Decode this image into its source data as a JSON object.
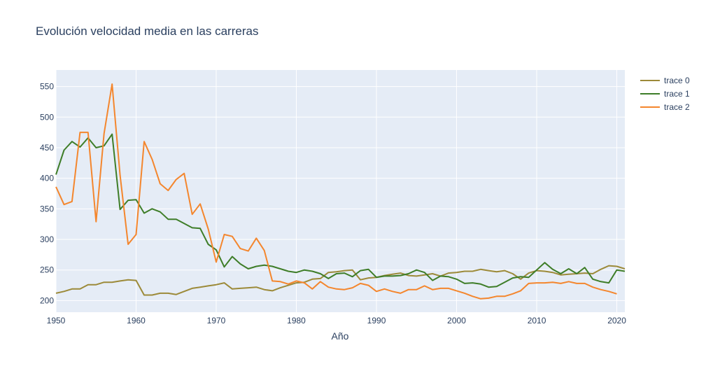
{
  "chart_data": {
    "type": "line",
    "title": "Evolución velocidad media en las carreras",
    "xlabel": "Año",
    "ylabel": "",
    "xlim": [
      1950,
      2021
    ],
    "ylim": [
      181,
      577
    ],
    "x_ticks": [
      1950,
      1960,
      1970,
      1980,
      1990,
      2000,
      2010,
      2020
    ],
    "y_ticks": [
      200,
      250,
      300,
      350,
      400,
      450,
      500,
      550
    ],
    "grid": true,
    "legend_position": "top-right",
    "plot_background": "#e5ecf6",
    "series": [
      {
        "name": "trace 0",
        "color": "#9c8a39",
        "x": [
          1950,
          1951,
          1952,
          1953,
          1954,
          1955,
          1956,
          1957,
          1958,
          1959,
          1960,
          1961,
          1962,
          1963,
          1964,
          1965,
          1966,
          1967,
          1968,
          1969,
          1970,
          1971,
          1972,
          1973,
          1974,
          1975,
          1976,
          1977,
          1978,
          1979,
          1980,
          1981,
          1982,
          1983,
          1984,
          1985,
          1986,
          1987,
          1988,
          1989,
          1990,
          1991,
          1992,
          1993,
          1994,
          1995,
          1996,
          1997,
          1998,
          1999,
          2000,
          2001,
          2002,
          2003,
          2004,
          2005,
          2006,
          2007,
          2008,
          2009,
          2010,
          2011,
          2012,
          2013,
          2014,
          2015,
          2016,
          2017,
          2018,
          2019,
          2020,
          2021
        ],
        "values": [
          212,
          215,
          219,
          219,
          226,
          226,
          230,
          230,
          232,
          234,
          233,
          209,
          209,
          212,
          212,
          210,
          215,
          220,
          222,
          224,
          226,
          229,
          219,
          220,
          221,
          222,
          218,
          216,
          221,
          225,
          229,
          230,
          235,
          236,
          246,
          247,
          249,
          250,
          234,
          237,
          238,
          241,
          243,
          245,
          241,
          240,
          242,
          244,
          240,
          245,
          246,
          248,
          248,
          251,
          249,
          247,
          249,
          244,
          235,
          245,
          249,
          248,
          246,
          242,
          243,
          244,
          245,
          244,
          251,
          257,
          256,
          252
        ]
      },
      {
        "name": "trace 1",
        "color": "#3e7d28",
        "x": [
          1950,
          1951,
          1952,
          1953,
          1954,
          1955,
          1956,
          1957,
          1958,
          1959,
          1960,
          1961,
          1962,
          1963,
          1964,
          1965,
          1966,
          1967,
          1968,
          1969,
          1970,
          1971,
          1972,
          1973,
          1974,
          1975,
          1976,
          1977,
          1978,
          1979,
          1980,
          1981,
          1982,
          1983,
          1984,
          1985,
          1986,
          1987,
          1988,
          1989,
          1990,
          1991,
          1992,
          1993,
          1994,
          1995,
          1996,
          1997,
          1998,
          1999,
          2000,
          2001,
          2002,
          2003,
          2004,
          2005,
          2006,
          2007,
          2008,
          2009,
          2010,
          2011,
          2012,
          2013,
          2014,
          2015,
          2016,
          2017,
          2018,
          2019,
          2020,
          2021
        ],
        "values": [
          406,
          446,
          460,
          451,
          466,
          450,
          453,
          472,
          349,
          364,
          365,
          343,
          350,
          345,
          333,
          333,
          326,
          319,
          318,
          292,
          283,
          255,
          272,
          260,
          252,
          256,
          258,
          256,
          252,
          248,
          246,
          250,
          248,
          244,
          236,
          244,
          245,
          239,
          249,
          251,
          238,
          240,
          240,
          241,
          244,
          250,
          246,
          233,
          240,
          239,
          235,
          228,
          229,
          227,
          222,
          223,
          230,
          237,
          239,
          238,
          250,
          262,
          251,
          244,
          252,
          244,
          254,
          235,
          231,
          229,
          250,
          248
        ]
      },
      {
        "name": "trace 2",
        "color": "#f4862d",
        "x": [
          1950,
          1951,
          1952,
          1953,
          1954,
          1955,
          1956,
          1957,
          1958,
          1959,
          1960,
          1961,
          1962,
          1963,
          1964,
          1965,
          1966,
          1967,
          1968,
          1969,
          1970,
          1971,
          1972,
          1973,
          1974,
          1975,
          1976,
          1977,
          1978,
          1979,
          1980,
          1981,
          1982,
          1983,
          1984,
          1985,
          1986,
          1987,
          1988,
          1989,
          1990,
          1991,
          1992,
          1993,
          1994,
          1995,
          1996,
          1997,
          1998,
          1999,
          2000,
          2001,
          2002,
          2003,
          2004,
          2005,
          2006,
          2007,
          2008,
          2009,
          2010,
          2011,
          2012,
          2013,
          2014,
          2015,
          2016,
          2017,
          2018,
          2019,
          2020
        ],
        "values": [
          386,
          357,
          362,
          475,
          475,
          329,
          473,
          554,
          405,
          292,
          308,
          460,
          431,
          391,
          380,
          398,
          408,
          341,
          358,
          317,
          263,
          308,
          305,
          285,
          281,
          302,
          282,
          232,
          231,
          227,
          232,
          229,
          219,
          231,
          222,
          219,
          218,
          221,
          228,
          225,
          215,
          219,
          215,
          212,
          218,
          218,
          224,
          218,
          220,
          220,
          216,
          212,
          207,
          203,
          204,
          207,
          207,
          211,
          216,
          228,
          229,
          229,
          230,
          228,
          231,
          228,
          228,
          222,
          218,
          215,
          211
        ]
      }
    ]
  }
}
